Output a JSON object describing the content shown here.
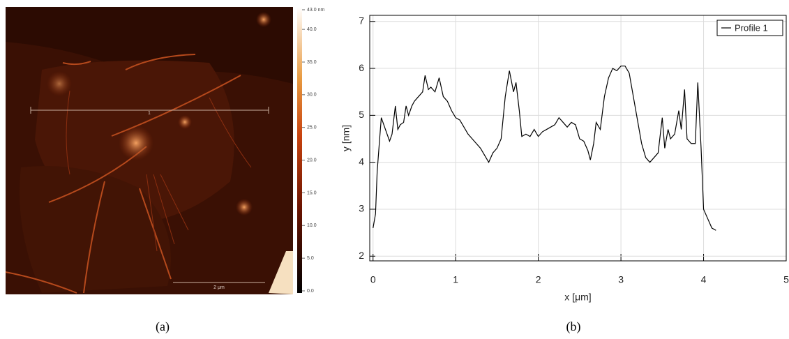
{
  "chart_data": [
    {
      "type": "image",
      "panel_label": "(a)",
      "line_label": "1",
      "scale_bar": "2 μm",
      "colorbar_lim": [
        0,
        43
      ],
      "colorbar_ticks": [
        {
          "value": 0,
          "label": "0.0"
        },
        {
          "value": 5,
          "label": "5.0"
        },
        {
          "value": 10,
          "label": "10.0"
        },
        {
          "value": 15,
          "label": "15.0"
        },
        {
          "value": 20,
          "label": "20.0"
        },
        {
          "value": 25,
          "label": "25.0"
        },
        {
          "value": 30,
          "label": "30.0"
        },
        {
          "value": 35,
          "label": "35.0"
        },
        {
          "value": 40,
          "label": "40.0"
        },
        {
          "value": 43,
          "label": "43.0 nm"
        }
      ]
    },
    {
      "type": "line",
      "panel_label": "(b)",
      "xlabel": "x [μm]",
      "ylabel": "y [nm]",
      "xlim": [
        -0.04,
        5
      ],
      "ylim": [
        1.9,
        7.13
      ],
      "xticks": [
        0,
        1,
        2,
        3,
        4,
        5
      ],
      "yticks": [
        2,
        3,
        4,
        5,
        6,
        7
      ],
      "grid": true,
      "legend": "upper right",
      "x": [
        0,
        0.03,
        0.05,
        0.08,
        0.1,
        0.13,
        0.17,
        0.2,
        0.23,
        0.27,
        0.3,
        0.33,
        0.37,
        0.4,
        0.43,
        0.47,
        0.5,
        0.55,
        0.6,
        0.63,
        0.67,
        0.7,
        0.75,
        0.8,
        0.85,
        0.9,
        0.95,
        1.0,
        1.05,
        1.1,
        1.15,
        1.2,
        1.25,
        1.3,
        1.35,
        1.4,
        1.45,
        1.5,
        1.55,
        1.6,
        1.65,
        1.7,
        1.73,
        1.77,
        1.8,
        1.85,
        1.9,
        1.95,
        2.0,
        2.05,
        2.1,
        2.15,
        2.2,
        2.25,
        2.3,
        2.35,
        2.4,
        2.45,
        2.5,
        2.55,
        2.6,
        2.63,
        2.67,
        2.7,
        2.75,
        2.8,
        2.85,
        2.9,
        2.95,
        3.0,
        3.05,
        3.1,
        3.15,
        3.2,
        3.25,
        3.3,
        3.35,
        3.4,
        3.45,
        3.5,
        3.53,
        3.57,
        3.6,
        3.65,
        3.7,
        3.73,
        3.77,
        3.8,
        3.85,
        3.9,
        3.93,
        3.97,
        4.0,
        4.05,
        4.1,
        4.15
      ],
      "series": [
        {
          "name": "Profile 1",
          "color": "#000000",
          "values": [
            2.6,
            2.9,
            3.8,
            4.5,
            4.95,
            4.8,
            4.6,
            4.45,
            4.6,
            5.2,
            4.7,
            4.8,
            4.85,
            5.2,
            5.0,
            5.2,
            5.3,
            5.4,
            5.5,
            5.85,
            5.55,
            5.6,
            5.5,
            5.8,
            5.4,
            5.3,
            5.1,
            4.95,
            4.9,
            4.75,
            4.6,
            4.5,
            4.4,
            4.3,
            4.15,
            4.0,
            4.2,
            4.3,
            4.5,
            5.4,
            5.95,
            5.5,
            5.7,
            5.1,
            4.55,
            4.6,
            4.55,
            4.7,
            4.55,
            4.65,
            4.7,
            4.75,
            4.8,
            4.95,
            4.85,
            4.75,
            4.85,
            4.8,
            4.5,
            4.45,
            4.25,
            4.05,
            4.4,
            4.85,
            4.7,
            5.4,
            5.8,
            6.0,
            5.95,
            6.05,
            6.05,
            5.9,
            5.4,
            4.9,
            4.4,
            4.1,
            4.0,
            4.1,
            4.2,
            4.95,
            4.3,
            4.7,
            4.5,
            4.6,
            5.1,
            4.7,
            5.55,
            4.5,
            4.4,
            4.4,
            5.7,
            4.3,
            3.0,
            2.8,
            2.6,
            2.55
          ]
        }
      ]
    }
  ]
}
